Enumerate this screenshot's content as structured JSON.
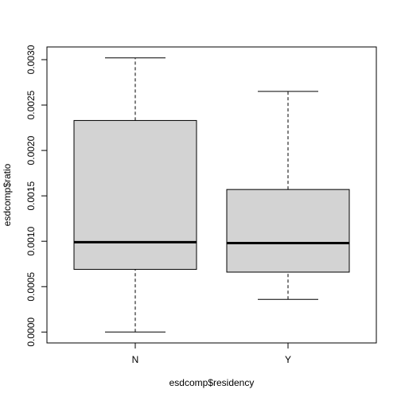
{
  "chart_data": {
    "type": "boxplot",
    "title": "",
    "xlabel": "esdcomp$residency",
    "ylabel": "esdcomp$ratio",
    "categories": [
      "N",
      "Y"
    ],
    "boxes": [
      {
        "category": "N",
        "whisker_low": 0.0,
        "q1": 0.00069,
        "median": 0.00099,
        "q3": 0.00233,
        "whisker_high": 0.00302
      },
      {
        "category": "Y",
        "whisker_low": 0.00036,
        "q1": 0.00066,
        "median": 0.00098,
        "q3": 0.00157,
        "whisker_high": 0.00265
      }
    ],
    "y_ticks": [
      0.0,
      0.0005,
      0.001,
      0.0015,
      0.002,
      0.0025,
      0.003
    ],
    "y_tick_labels": [
      "0.0000",
      "0.0005",
      "0.0010",
      "0.0015",
      "0.0020",
      "0.0025",
      "0.0030"
    ],
    "ylim": [
      -0.00012,
      0.00314
    ],
    "grid": false,
    "colors": {
      "box_fill": "#d3d3d3",
      "box_stroke": "#000000",
      "median": "#000000",
      "whisker": "#000000"
    }
  }
}
